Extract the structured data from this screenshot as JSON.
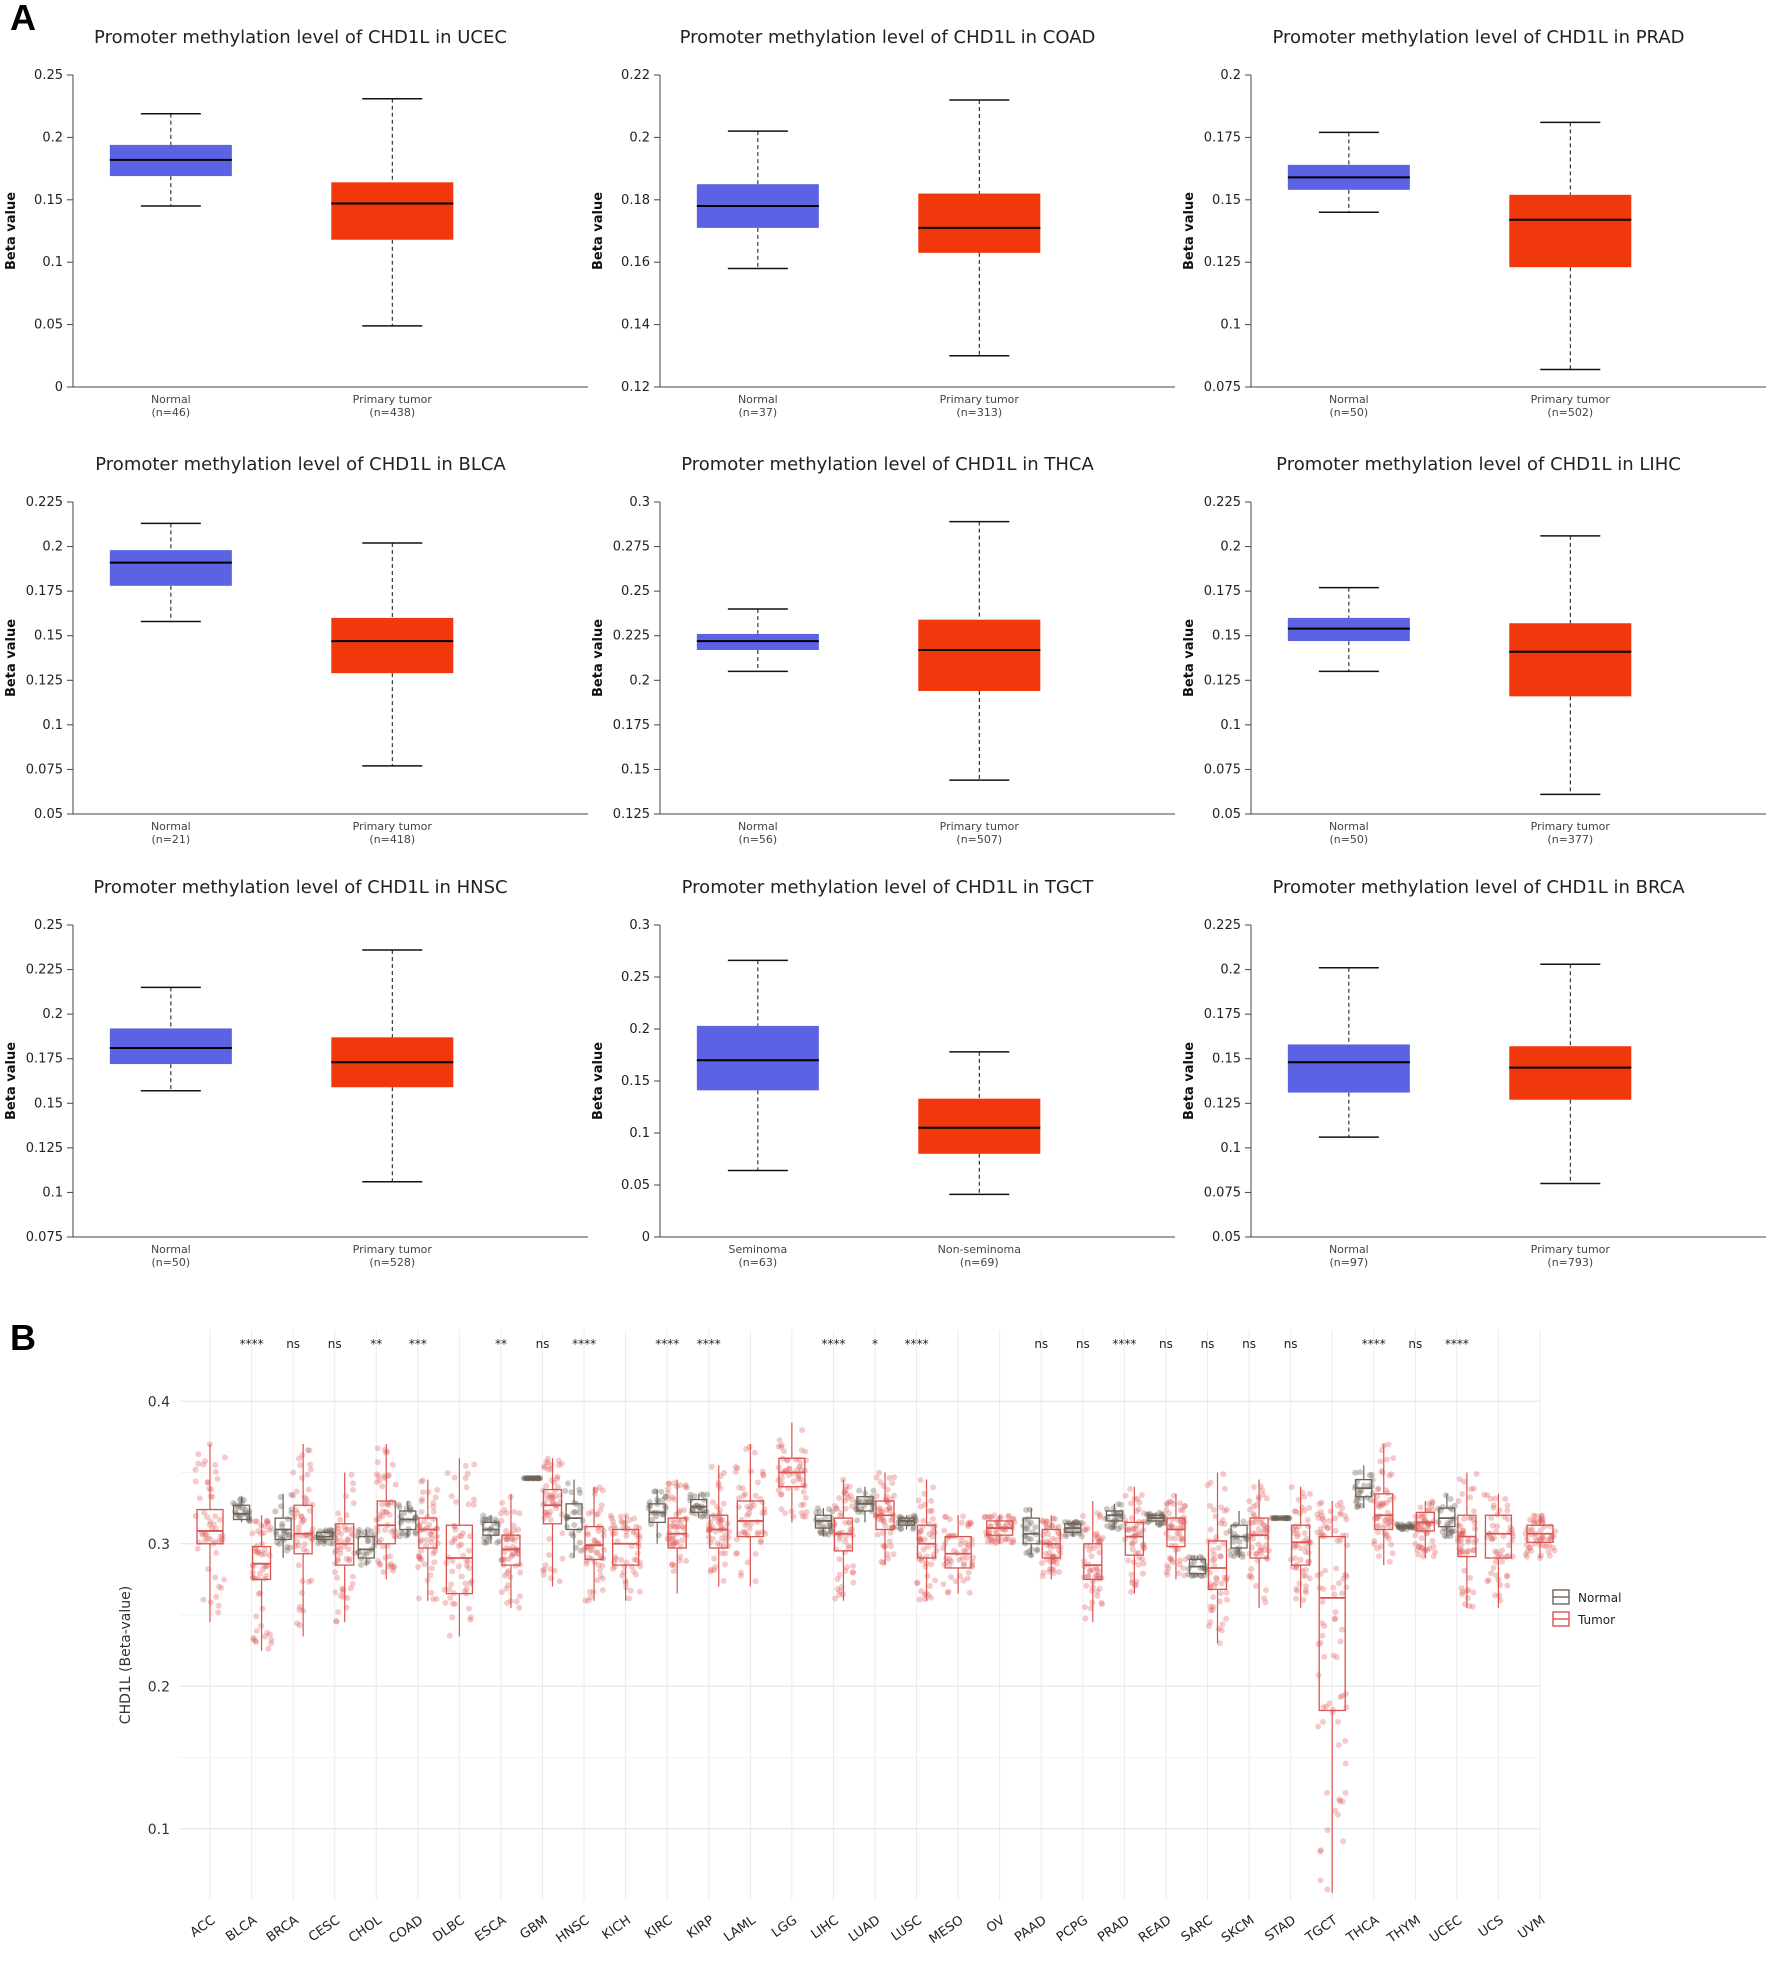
{
  "panel_a_label": "A",
  "panel_b_label": "B",
  "chart_data": [
    {
      "type": "box",
      "title": "Promoter methylation level of CHD1L in UCEC",
      "ylabel": "Beta value",
      "ylim": [
        0,
        0.25
      ],
      "yticks": [
        "0",
        "0.05",
        "0.1",
        "0.15",
        "0.2",
        "0.25"
      ],
      "groups": [
        {
          "name": "Normal",
          "n": "(n=46)",
          "min": 0.145,
          "q1": 0.169,
          "median": 0.182,
          "q3": 0.194,
          "max": 0.219,
          "color": "#5b63e4"
        },
        {
          "name": "Primary tumor",
          "n": "(n=438)",
          "min": 0.049,
          "q1": 0.118,
          "median": 0.147,
          "q3": 0.164,
          "max": 0.231,
          "color": "#f0380c"
        }
      ]
    },
    {
      "type": "box",
      "title": "Promoter methylation level of CHD1L in COAD",
      "ylabel": "Beta value",
      "ylim": [
        0.12,
        0.22
      ],
      "yticks": [
        "0.12",
        "0.14",
        "0.16",
        "0.18",
        "0.2",
        "0.22"
      ],
      "groups": [
        {
          "name": "Normal",
          "n": "(n=37)",
          "min": 0.158,
          "q1": 0.171,
          "median": 0.178,
          "q3": 0.185,
          "max": 0.202,
          "color": "#5b63e4"
        },
        {
          "name": "Primary tumor",
          "n": "(n=313)",
          "min": 0.13,
          "q1": 0.163,
          "median": 0.171,
          "q3": 0.182,
          "max": 0.212,
          "color": "#f0380c"
        }
      ]
    },
    {
      "type": "box",
      "title": "Promoter methylation level of CHD1L in PRAD",
      "ylabel": "Beta value",
      "ylim": [
        0.075,
        0.2
      ],
      "yticks": [
        "0.075",
        "0.1",
        "0.125",
        "0.15",
        "0.175",
        "0.2"
      ],
      "groups": [
        {
          "name": "Normal",
          "n": "(n=50)",
          "min": 0.145,
          "q1": 0.154,
          "median": 0.159,
          "q3": 0.164,
          "max": 0.177,
          "color": "#5b63e4"
        },
        {
          "name": "Primary tumor",
          "n": "(n=502)",
          "min": 0.082,
          "q1": 0.123,
          "median": 0.142,
          "q3": 0.152,
          "max": 0.181,
          "color": "#f0380c"
        }
      ]
    },
    {
      "type": "box",
      "title": "Promoter methylation level of CHD1L in BLCA",
      "ylabel": "Beta value",
      "ylim": [
        0.05,
        0.225
      ],
      "yticks": [
        "0.05",
        "0.075",
        "0.1",
        "0.125",
        "0.15",
        "0.175",
        "0.2",
        "0.225"
      ],
      "groups": [
        {
          "name": "Normal",
          "n": "(n=21)",
          "min": 0.158,
          "q1": 0.178,
          "median": 0.191,
          "q3": 0.198,
          "max": 0.213,
          "color": "#5b63e4"
        },
        {
          "name": "Primary tumor",
          "n": "(n=418)",
          "min": 0.077,
          "q1": 0.129,
          "median": 0.147,
          "q3": 0.16,
          "max": 0.202,
          "color": "#f0380c"
        }
      ]
    },
    {
      "type": "box",
      "title": "Promoter methylation level of CHD1L in THCA",
      "ylabel": "Beta value",
      "ylim": [
        0.125,
        0.3
      ],
      "yticks": [
        "0.125",
        "0.15",
        "0.175",
        "0.2",
        "0.225",
        "0.25",
        "0.275",
        "0.3"
      ],
      "groups": [
        {
          "name": "Normal",
          "n": "(n=56)",
          "min": 0.205,
          "q1": 0.217,
          "median": 0.222,
          "q3": 0.226,
          "max": 0.24,
          "color": "#5b63e4"
        },
        {
          "name": "Primary tumor",
          "n": "(n=507)",
          "min": 0.144,
          "q1": 0.194,
          "median": 0.217,
          "q3": 0.234,
          "max": 0.289,
          "color": "#f0380c"
        }
      ]
    },
    {
      "type": "box",
      "title": "Promoter methylation level of CHD1L in LIHC",
      "ylabel": "Beta value",
      "ylim": [
        0.05,
        0.225
      ],
      "yticks": [
        "0.05",
        "0.075",
        "0.1",
        "0.125",
        "0.15",
        "0.175",
        "0.2",
        "0.225"
      ],
      "groups": [
        {
          "name": "Normal",
          "n": "(n=50)",
          "min": 0.13,
          "q1": 0.147,
          "median": 0.154,
          "q3": 0.16,
          "max": 0.177,
          "color": "#5b63e4"
        },
        {
          "name": "Primary tumor",
          "n": "(n=377)",
          "min": 0.061,
          "q1": 0.116,
          "median": 0.141,
          "q3": 0.157,
          "max": 0.206,
          "color": "#f0380c"
        }
      ]
    },
    {
      "type": "box",
      "title": "Promoter methylation level of CHD1L in HNSC",
      "ylabel": "Beta value",
      "ylim": [
        0.075,
        0.25
      ],
      "yticks": [
        "0.075",
        "0.1",
        "0.125",
        "0.15",
        "0.175",
        "0.2",
        "0.225",
        "0.25"
      ],
      "groups": [
        {
          "name": "Normal",
          "n": "(n=50)",
          "min": 0.157,
          "q1": 0.172,
          "median": 0.181,
          "q3": 0.192,
          "max": 0.215,
          "color": "#5b63e4"
        },
        {
          "name": "Primary tumor",
          "n": "(n=528)",
          "min": 0.106,
          "q1": 0.159,
          "median": 0.173,
          "q3": 0.187,
          "max": 0.236,
          "color": "#f0380c"
        }
      ]
    },
    {
      "type": "box",
      "title": "Promoter methylation level of CHD1L in TGCT",
      "ylabel": "Beta value",
      "ylim": [
        0,
        0.3
      ],
      "yticks": [
        "0",
        "0.05",
        "0.1",
        "0.15",
        "0.2",
        "0.25",
        "0.3"
      ],
      "groups": [
        {
          "name": "Seminoma",
          "n": "(n=63)",
          "min": 0.064,
          "q1": 0.141,
          "median": 0.17,
          "q3": 0.203,
          "max": 0.266,
          "color": "#5b63e4"
        },
        {
          "name": "Non-seminoma",
          "n": "(n=69)",
          "min": 0.041,
          "q1": 0.08,
          "median": 0.105,
          "q3": 0.133,
          "max": 0.178,
          "color": "#f0380c"
        }
      ]
    },
    {
      "type": "box",
      "title": "Promoter methylation level of CHD1L in BRCA",
      "ylabel": "Beta value",
      "ylim": [
        0.05,
        0.225
      ],
      "yticks": [
        "0.05",
        "0.075",
        "0.1",
        "0.125",
        "0.15",
        "0.175",
        "0.2",
        "0.225"
      ],
      "groups": [
        {
          "name": "Normal",
          "n": "(n=97)",
          "min": 0.106,
          "q1": 0.131,
          "median": 0.148,
          "q3": 0.158,
          "max": 0.201,
          "color": "#5b63e4"
        },
        {
          "name": "Primary tumor",
          "n": "(n=793)",
          "min": 0.08,
          "q1": 0.127,
          "median": 0.145,
          "q3": 0.157,
          "max": 0.203,
          "color": "#f0380c"
        }
      ]
    },
    {
      "type": "box_jitter",
      "ylabel": "CHD1L (Beta-value)",
      "ylim": [
        0.05,
        0.45
      ],
      "yticks": [
        "0.1",
        "0.2",
        "0.3",
        "0.4"
      ],
      "legend": [
        {
          "name": "Normal",
          "color": "#6e6258"
        },
        {
          "name": "Tumor",
          "color": "#d9534f"
        }
      ],
      "categories": [
        {
          "name": "ACC",
          "sig": "",
          "normal": null,
          "tumor": [
            0.245,
            0.3,
            0.309,
            0.324,
            0.37
          ]
        },
        {
          "name": "BLCA",
          "sig": "****",
          "normal": [
            0.315,
            0.317,
            0.321,
            0.327,
            0.333
          ],
          "tumor": [
            0.225,
            0.275,
            0.286,
            0.298,
            0.32
          ]
        },
        {
          "name": "BRCA",
          "sig": "ns",
          "normal": [
            0.29,
            0.303,
            0.31,
            0.318,
            0.335
          ],
          "tumor": [
            0.235,
            0.293,
            0.307,
            0.327,
            0.37
          ]
        },
        {
          "name": "CESC",
          "sig": "ns",
          "normal": [
            0.3,
            0.303,
            0.305,
            0.308,
            0.31
          ],
          "tumor": [
            0.245,
            0.285,
            0.3,
            0.314,
            0.35
          ]
        },
        {
          "name": "CHOL",
          "sig": "**",
          "normal": [
            0.285,
            0.29,
            0.296,
            0.305,
            0.31
          ],
          "tumor": [
            0.275,
            0.3,
            0.313,
            0.33,
            0.37
          ]
        },
        {
          "name": "COAD",
          "sig": "***",
          "normal": [
            0.305,
            0.31,
            0.317,
            0.323,
            0.33
          ],
          "tumor": [
            0.26,
            0.297,
            0.31,
            0.318,
            0.345
          ]
        },
        {
          "name": "DLBC",
          "sig": "",
          "normal": null,
          "tumor": [
            0.235,
            0.265,
            0.29,
            0.313,
            0.36
          ]
        },
        {
          "name": "ESCA",
          "sig": "**",
          "normal": [
            0.3,
            0.306,
            0.31,
            0.315,
            0.32
          ],
          "tumor": [
            0.255,
            0.285,
            0.296,
            0.306,
            0.335
          ]
        },
        {
          "name": "GBM",
          "sig": "ns",
          "normal": [
            0.346,
            0.346,
            0.346,
            0.346,
            0.346
          ],
          "tumor": [
            0.27,
            0.314,
            0.327,
            0.338,
            0.36
          ]
        },
        {
          "name": "HNSC",
          "sig": "****",
          "normal": [
            0.29,
            0.31,
            0.318,
            0.328,
            0.345
          ],
          "tumor": [
            0.26,
            0.289,
            0.299,
            0.312,
            0.34
          ]
        },
        {
          "name": "KICH",
          "sig": "",
          "normal": null,
          "tumor": [
            0.26,
            0.285,
            0.3,
            0.31,
            0.32
          ]
        },
        {
          "name": "KIRC",
          "sig": "****",
          "normal": [
            0.3,
            0.315,
            0.322,
            0.328,
            0.338
          ],
          "tumor": [
            0.265,
            0.297,
            0.307,
            0.318,
            0.345
          ]
        },
        {
          "name": "KIRP",
          "sig": "****",
          "normal": [
            0.318,
            0.322,
            0.326,
            0.331,
            0.335
          ],
          "tumor": [
            0.27,
            0.297,
            0.31,
            0.32,
            0.355
          ]
        },
        {
          "name": "LAML",
          "sig": "",
          "normal": null,
          "tumor": [
            0.27,
            0.305,
            0.316,
            0.33,
            0.37
          ]
        },
        {
          "name": "LGG",
          "sig": "",
          "normal": null,
          "tumor": [
            0.315,
            0.34,
            0.35,
            0.36,
            0.385
          ]
        },
        {
          "name": "LIHC",
          "sig": "****",
          "normal": [
            0.305,
            0.311,
            0.316,
            0.32,
            0.325
          ],
          "tumor": [
            0.26,
            0.295,
            0.307,
            0.318,
            0.345
          ]
        },
        {
          "name": "LUAD",
          "sig": "*",
          "normal": [
            0.315,
            0.323,
            0.328,
            0.333,
            0.34
          ],
          "tumor": [
            0.285,
            0.31,
            0.32,
            0.33,
            0.35
          ]
        },
        {
          "name": "LUSC",
          "sig": "****",
          "normal": [
            0.31,
            0.313,
            0.316,
            0.318,
            0.32
          ],
          "tumor": [
            0.26,
            0.29,
            0.3,
            0.313,
            0.345
          ]
        },
        {
          "name": "MESO",
          "sig": "",
          "normal": null,
          "tumor": [
            0.265,
            0.283,
            0.293,
            0.305,
            0.32
          ]
        },
        {
          "name": "OV",
          "sig": "",
          "normal": null,
          "tumor": [
            0.3,
            0.306,
            0.311,
            0.316,
            0.32
          ]
        },
        {
          "name": "PAAD",
          "sig": "ns",
          "normal": [
            0.292,
            0.3,
            0.307,
            0.318,
            0.325
          ],
          "tumor": [
            0.275,
            0.29,
            0.3,
            0.31,
            0.32
          ]
        },
        {
          "name": "PCPG",
          "sig": "ns",
          "normal": [
            0.305,
            0.308,
            0.311,
            0.314,
            0.316
          ],
          "tumor": [
            0.245,
            0.275,
            0.285,
            0.3,
            0.33
          ]
        },
        {
          "name": "PRAD",
          "sig": "****",
          "normal": [
            0.31,
            0.316,
            0.32,
            0.323,
            0.328
          ],
          "tumor": [
            0.265,
            0.292,
            0.305,
            0.315,
            0.34
          ]
        },
        {
          "name": "READ",
          "sig": "ns",
          "normal": [
            0.313,
            0.316,
            0.318,
            0.32,
            0.322
          ],
          "tumor": [
            0.275,
            0.298,
            0.31,
            0.318,
            0.335
          ]
        },
        {
          "name": "SARC",
          "sig": "ns",
          "normal": [
            0.277,
            0.279,
            0.284,
            0.289,
            0.291
          ],
          "tumor": [
            0.23,
            0.268,
            0.283,
            0.302,
            0.35
          ]
        },
        {
          "name": "SKCM",
          "sig": "ns",
          "normal": [
            0.29,
            0.297,
            0.305,
            0.313,
            0.323
          ],
          "tumor": [
            0.255,
            0.29,
            0.306,
            0.318,
            0.345
          ]
        },
        {
          "name": "STAD",
          "sig": "ns",
          "normal": [
            0.318,
            0.318,
            0.318,
            0.318,
            0.318
          ],
          "tumor": [
            0.255,
            0.285,
            0.301,
            0.313,
            0.34
          ]
        },
        {
          "name": "TGCT",
          "sig": "",
          "normal": null,
          "tumor": [
            0.055,
            0.183,
            0.262,
            0.305,
            0.33
          ]
        },
        {
          "name": "THCA",
          "sig": "****",
          "normal": [
            0.325,
            0.333,
            0.339,
            0.345,
            0.355
          ],
          "tumor": [
            0.285,
            0.31,
            0.32,
            0.335,
            0.37
          ]
        },
        {
          "name": "THYM",
          "sig": "ns",
          "normal": [
            0.31,
            0.311,
            0.312,
            0.313,
            0.314
          ],
          "tumor": [
            0.29,
            0.309,
            0.315,
            0.322,
            0.33
          ]
        },
        {
          "name": "UCEC",
          "sig": "****",
          "normal": [
            0.305,
            0.312,
            0.318,
            0.325,
            0.335
          ],
          "tumor": [
            0.255,
            0.291,
            0.305,
            0.32,
            0.35
          ]
        },
        {
          "name": "UCS",
          "sig": "",
          "normal": null,
          "tumor": [
            0.255,
            0.29,
            0.307,
            0.32,
            0.335
          ]
        },
        {
          "name": "UVM",
          "sig": "",
          "normal": null,
          "tumor": [
            0.29,
            0.301,
            0.307,
            0.313,
            0.32
          ]
        }
      ]
    }
  ]
}
